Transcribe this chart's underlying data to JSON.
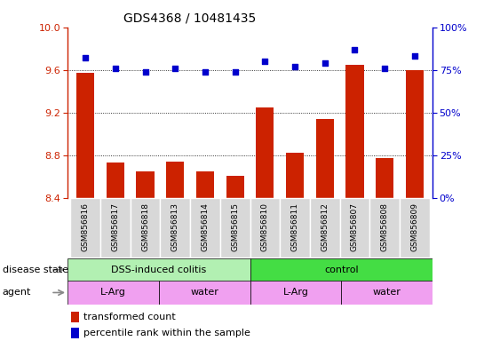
{
  "title": "GDS4368 / 10481435",
  "samples": [
    "GSM856816",
    "GSM856817",
    "GSM856818",
    "GSM856813",
    "GSM856814",
    "GSM856815",
    "GSM856810",
    "GSM856811",
    "GSM856812",
    "GSM856807",
    "GSM856808",
    "GSM856809"
  ],
  "transformed_count": [
    9.57,
    8.73,
    8.65,
    8.74,
    8.65,
    8.61,
    9.25,
    8.82,
    9.14,
    9.65,
    8.77,
    9.6
  ],
  "percentile_rank": [
    82,
    76,
    74,
    76,
    74,
    74,
    80,
    77,
    79,
    87,
    76,
    83
  ],
  "ylim_left": [
    8.4,
    10.0
  ],
  "ylim_right": [
    0,
    100
  ],
  "yticks_left": [
    8.4,
    8.8,
    9.2,
    9.6,
    10.0
  ],
  "yticks_right": [
    0,
    25,
    50,
    75,
    100
  ],
  "bar_color": "#cc2200",
  "scatter_color": "#0000cc",
  "dss_color": "#b2f0b2",
  "ctrl_color": "#44dd44",
  "agent_color_light": "#f0a0f0",
  "agent_color_dark": "#ee60ee",
  "label_bg_color": "#d8d8d8",
  "legend_bar_label": "transformed count",
  "legend_scatter_label": "percentile rank within the sample"
}
